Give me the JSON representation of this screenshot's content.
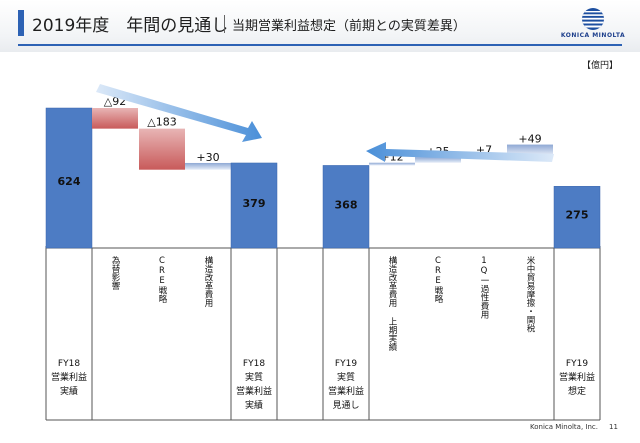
{
  "header": {
    "title": "2019年度　年間の見通し",
    "subtitle": "当期営業利益想定（前期との実質差異）",
    "logo_text": "KONICA MINOLTA"
  },
  "unit_label": "【億円】",
  "footer": {
    "company": "Konica Minolta, Inc.",
    "page": "11"
  },
  "colors": {
    "total_bar": "#4d7cc4",
    "negative_bar": "#c85a5a",
    "positive_bar": "#8ea8d4",
    "arrow": "#4a8fd8",
    "accent": "#2d62b4"
  },
  "chart_data": {
    "type": "bar",
    "subtype": "waterfall",
    "categories": [
      "FY18\n営業利益\n実績",
      "為替影響",
      "CRE戦略",
      "構造改革費用",
      "FY18\n実質\n営業利益\n実績",
      "FY19\n実質\n営業利益\n見通し",
      "構造改革費用 上期実績",
      "CRE戦略",
      "1Q一過性費用",
      "米中貿易摩擦・関税",
      "FY19\n営業利益\n想定"
    ],
    "values": [
      624,
      -92,
      -183,
      30,
      379,
      368,
      12,
      25,
      7,
      49,
      275
    ],
    "value_labels": [
      "624",
      "△92",
      "△183",
      "+30",
      "379",
      "368",
      "+12",
      "+25",
      "+7",
      "+49",
      "275"
    ],
    "kinds": [
      "total",
      "delta",
      "delta",
      "delta",
      "total",
      "total",
      "delta",
      "delta",
      "delta",
      "delta",
      "total"
    ],
    "ylim": [
      0,
      624
    ]
  }
}
